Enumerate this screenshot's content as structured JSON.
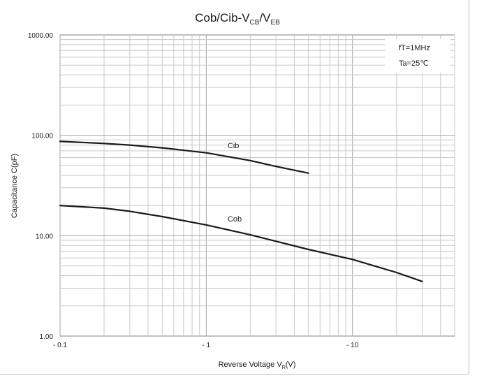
{
  "chart_data": {
    "type": "line",
    "title": {
      "main": "Cob/Cib-V",
      "sub1": "CB",
      "sep": "/V",
      "sub2": "EB"
    },
    "xlabel": {
      "main": "Reverse Voltage  V",
      "sub": "R",
      "unit": "(V)"
    },
    "ylabel": "Capacitance  C(pF)",
    "x_scale": "log",
    "y_scale": "log",
    "xlim": [
      0.1,
      50
    ],
    "ylim": [
      1,
      1000
    ],
    "x_ticks": [
      {
        "value": 0.1,
        "label": "- 0.1"
      },
      {
        "value": 1,
        "label": "- 1"
      },
      {
        "value": 10,
        "label": "- 10"
      }
    ],
    "y_ticks": [
      {
        "value": 1,
        "label": "1.00"
      },
      {
        "value": 10,
        "label": "10.00"
      },
      {
        "value": 100,
        "label": "100.00"
      },
      {
        "value": 1000,
        "label": "1000.00"
      }
    ],
    "grid": true,
    "legend_box": {
      "position": "top-right",
      "lines": [
        "fT=1MHz",
        "Ta=25℃"
      ]
    },
    "series": [
      {
        "name": "Cib",
        "x": [
          0.1,
          0.2,
          0.3,
          0.5,
          1,
          2,
          3,
          5
        ],
        "y": [
          87,
          83,
          80,
          75,
          67,
          56,
          49,
          42
        ]
      },
      {
        "name": "Cob",
        "x": [
          0.1,
          0.2,
          0.3,
          0.5,
          1,
          2,
          3,
          5,
          10,
          20,
          30
        ],
        "y": [
          20,
          18.8,
          17.5,
          15.5,
          12.8,
          10.2,
          8.8,
          7.3,
          5.8,
          4.3,
          3.5
        ]
      }
    ],
    "annotations": [
      "Cib",
      "Cob"
    ]
  }
}
